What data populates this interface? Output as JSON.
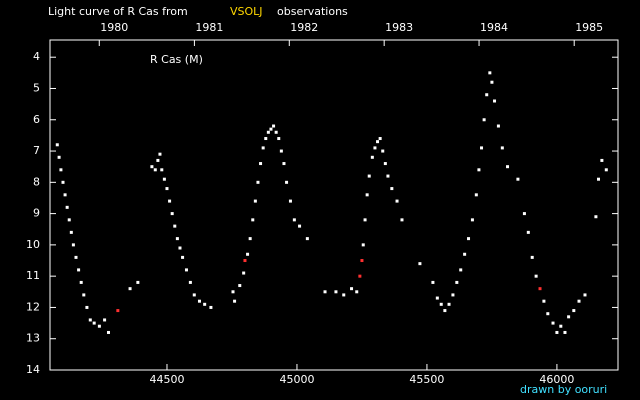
{
  "chart_data": {
    "type": "scatter",
    "title": "Light curve of R Cas from",
    "title_highlight": "VSOLJ",
    "title_end": "observations",
    "annotation": "R Cas (M)",
    "credit": "drawn by ooruri",
    "xlim": [
      44050,
      46235
    ],
    "ylim": [
      14,
      3.45
    ],
    "xticks": [
      44500,
      45000,
      45500,
      46000
    ],
    "x2ticks": [
      {
        "value": 44239.5,
        "label": "1980"
      },
      {
        "value": 44605.5,
        "label": "1981"
      },
      {
        "value": 44970.5,
        "label": "1982"
      },
      {
        "value": 45335.5,
        "label": "1983"
      },
      {
        "value": 45700.5,
        "label": "1984"
      },
      {
        "value": 46066.5,
        "label": "1985"
      }
    ],
    "yticks": [
      4,
      5,
      6,
      7,
      8,
      9,
      10,
      11,
      12,
      13,
      14
    ],
    "series": [
      {
        "color": "#ffffff",
        "x": [
          44078,
          44085,
          44092,
          44100,
          44108,
          44116,
          44124,
          44132,
          44140,
          44150,
          44160,
          44170,
          44180,
          44192,
          44205,
          44220,
          44240,
          44260,
          44275,
          44358,
          44388,
          44442,
          44455,
          44465,
          44473,
          44480,
          44490,
          44500,
          44510,
          44520,
          44530,
          44540,
          44550,
          44560,
          44575,
          44590,
          44605,
          44625,
          44645,
          44669,
          44754,
          44760,
          44780,
          44795,
          44810,
          44820,
          44830,
          44840,
          44850,
          44860,
          44870,
          44880,
          44890,
          44900,
          44910,
          44920,
          44930,
          44940,
          44950,
          44960,
          44975,
          44990,
          45010,
          45040,
          45108,
          45150,
          45180,
          45210,
          45230,
          45255,
          45262,
          45270,
          45278,
          45290,
          45300,
          45310,
          45320,
          45330,
          45340,
          45350,
          45365,
          45385,
          45404,
          45473,
          45523,
          45540,
          45555,
          45569,
          45585,
          45600,
          45615,
          45630,
          45645,
          45660,
          45675,
          45690,
          45700,
          45710,
          45720,
          45730,
          45742,
          45750,
          45760,
          45775,
          45790,
          45810,
          45850,
          45875,
          45890,
          45905,
          45920,
          45950,
          45965,
          45985,
          46000,
          46015,
          46031,
          46045,
          46065,
          46085,
          46108,
          46150,
          46160,
          46173,
          46190
        ],
        "values": [
          6.8,
          7.2,
          7.6,
          8.0,
          8.4,
          8.8,
          9.2,
          9.6,
          10.0,
          10.4,
          10.8,
          11.2,
          11.6,
          12.0,
          12.4,
          12.5,
          12.6,
          12.4,
          12.8,
          11.4,
          11.2,
          7.5,
          7.6,
          7.3,
          7.1,
          7.6,
          7.9,
          8.2,
          8.6,
          9.0,
          9.4,
          9.8,
          10.1,
          10.4,
          10.8,
          11.2,
          11.6,
          11.8,
          11.9,
          12.0,
          11.5,
          11.8,
          11.3,
          10.9,
          10.3,
          9.8,
          9.2,
          8.6,
          8.0,
          7.4,
          6.9,
          6.6,
          6.4,
          6.3,
          6.2,
          6.4,
          6.6,
          7.0,
          7.4,
          8.0,
          8.6,
          9.2,
          9.4,
          9.8,
          11.5,
          11.5,
          11.6,
          11.4,
          11.5,
          10.0,
          9.2,
          8.4,
          7.8,
          7.2,
          6.9,
          6.7,
          6.6,
          7.0,
          7.4,
          7.8,
          8.2,
          8.6,
          9.2,
          10.6,
          11.2,
          11.7,
          11.9,
          12.1,
          11.9,
          11.6,
          11.2,
          10.8,
          10.3,
          9.8,
          9.2,
          8.4,
          7.6,
          6.9,
          6.0,
          5.2,
          4.5,
          4.8,
          5.4,
          6.2,
          6.9,
          7.5,
          7.9,
          9.0,
          9.6,
          10.4,
          11.0,
          11.8,
          12.2,
          12.5,
          12.8,
          12.6,
          12.8,
          12.3,
          12.1,
          11.8,
          11.6,
          9.1,
          7.9,
          7.3,
          7.6
        ]
      },
      {
        "color": "#ff3030",
        "x": [
          44311,
          44800,
          45242,
          45250,
          45935
        ],
        "values": [
          12.1,
          10.5,
          11.0,
          10.5,
          11.4
        ]
      }
    ]
  }
}
